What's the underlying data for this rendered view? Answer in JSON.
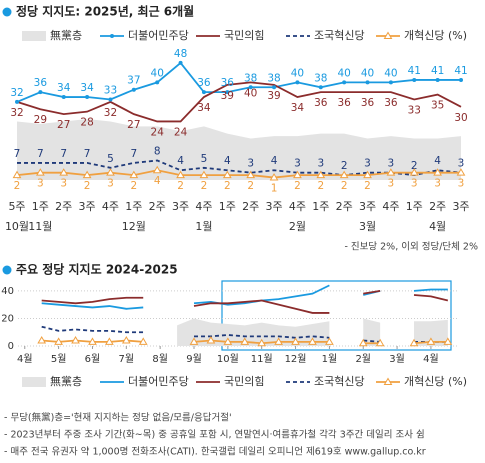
{
  "chart_data": [
    {
      "type": "line",
      "title": "정당 지지도: 2025년, 최근 6개월",
      "categories": [
        "5주",
        "1주",
        "2주",
        "3주",
        "4주",
        "1주",
        "2주",
        "3주",
        "4주",
        "1주",
        "2주",
        "3주",
        "4주",
        "1주",
        "2주",
        "3주",
        "4주",
        "1주",
        "2주",
        "3주"
      ],
      "months": [
        "10월",
        "11월",
        null,
        null,
        null,
        "12월",
        null,
        null,
        "1월",
        null,
        null,
        null,
        "2월",
        null,
        null,
        "3월",
        null,
        null,
        "4월",
        null
      ],
      "ylim": [
        0,
        50
      ],
      "value_labels_shown": true,
      "series": [
        {
          "name": "無黨층",
          "color": "#e3e3e3",
          "area": true,
          "labels": false,
          "values": [
            24,
            23,
            24,
            25,
            24,
            22,
            22,
            20,
            22,
            19,
            17,
            18,
            18,
            19,
            19,
            17,
            18,
            17,
            17,
            18
          ]
        },
        {
          "name": "더불어민주당",
          "color": "#1a9ae0",
          "marker": "circle",
          "labels": true,
          "values": [
            32,
            36,
            34,
            34,
            33,
            37,
            40,
            48,
            36,
            36,
            38,
            38,
            40,
            38,
            40,
            40,
            40,
            41,
            41,
            41
          ]
        },
        {
          "name": "국민의힘",
          "color": "#8b2c2c",
          "labels": true,
          "values": [
            32,
            29,
            27,
            28,
            32,
            27,
            24,
            24,
            34,
            39,
            40,
            39,
            34,
            36,
            36,
            36,
            36,
            33,
            35,
            30
          ]
        },
        {
          "name": "조국혁신당",
          "color": "#1f3a7a",
          "dash": true,
          "labels": true,
          "values": [
            7,
            7,
            7,
            7,
            5,
            7,
            8,
            4,
            5,
            4,
            3,
            4,
            3,
            3,
            2,
            3,
            3,
            2,
            4,
            3
          ]
        },
        {
          "name": "개혁신당 (%)",
          "color": "#f0a040",
          "marker": "triangle",
          "labels": true,
          "values": [
            2,
            3,
            3,
            2,
            3,
            2,
            4,
            2,
            2,
            2,
            2,
            1,
            2,
            2,
            2,
            2,
            3,
            3,
            3,
            3
          ]
        }
      ],
      "note": "- 진보당 2%, 이외 정당/단체 2%"
    },
    {
      "type": "line",
      "title": "주요 정당 지지도 2024-2025",
      "x": [
        0,
        0.5,
        1,
        1.5,
        2,
        2.5,
        3,
        3.5,
        4,
        4.5,
        5,
        5.5,
        6,
        6.5,
        7,
        7.5,
        8,
        8.5,
        9,
        9.5,
        10,
        10.5,
        11,
        11.5,
        12,
        12.5
      ],
      "xlim": [
        -0.2,
        12.8
      ],
      "xticks": [
        {
          "value": 0,
          "label": "4월"
        },
        {
          "value": 1,
          "label": "5월"
        },
        {
          "value": 2,
          "label": "6월"
        },
        {
          "value": 3,
          "label": "7월"
        },
        {
          "value": 4,
          "label": "8월"
        },
        {
          "value": 5,
          "label": "9월"
        },
        {
          "value": 6,
          "label": "10월"
        },
        {
          "value": 7,
          "label": "11월"
        },
        {
          "value": 8,
          "label": "12월"
        },
        {
          "value": 9,
          "label": "1월"
        },
        {
          "value": 10,
          "label": "2월"
        },
        {
          "value": 11,
          "label": "3월"
        },
        {
          "value": 12,
          "label": "4월"
        }
      ],
      "ylim": [
        0,
        45
      ],
      "yticks": [
        0,
        20,
        40
      ],
      "grid": true,
      "series": [
        {
          "name": "無黨층",
          "color": "#e3e3e3",
          "area": true,
          "values": [
            null,
            null,
            null,
            null,
            null,
            null,
            null,
            null,
            null,
            15,
            20,
            17,
            16,
            15,
            17,
            15,
            14,
            16,
            18,
            null,
            20,
            17,
            null,
            18,
            18,
            19
          ]
        },
        {
          "name": "더불어민주당",
          "color": "#1a9ae0",
          "values": [
            null,
            31,
            30,
            29,
            28,
            29,
            27,
            28,
            null,
            null,
            31,
            32,
            30,
            31,
            33,
            34,
            36,
            38,
            44,
            null,
            37,
            40,
            null,
            40,
            41,
            41
          ]
        },
        {
          "name": "국민의힘",
          "color": "#8b2c2c",
          "values": [
            null,
            33,
            32,
            31,
            32,
            34,
            35,
            35,
            null,
            null,
            29,
            31,
            31,
            32,
            33,
            30,
            27,
            24,
            24,
            null,
            38,
            40,
            null,
            37,
            36,
            33
          ]
        },
        {
          "name": "조국혁신당",
          "color": "#1f3a7a",
          "dash": true,
          "values": [
            null,
            14,
            11,
            12,
            11,
            11,
            10,
            10,
            null,
            null,
            7,
            7,
            8,
            7,
            7,
            7,
            6,
            7,
            6,
            null,
            4,
            3,
            null,
            3,
            3,
            3
          ]
        },
        {
          "name": "개혁신당 (%)",
          "color": "#f0a040",
          "marker": "triangle",
          "values": [
            null,
            4,
            3,
            4,
            3,
            3,
            4,
            3,
            null,
            null,
            3,
            4,
            3,
            3,
            2,
            3,
            3,
            3,
            3,
            null,
            2,
            2,
            null,
            2,
            3,
            3
          ]
        }
      ],
      "notes": [
        "- 무당(無黨)층='현재 지지하는 정당 없음/모름/응답거절'",
        "- 2023년부터 주중 조사 기간(화~목) 중 공휴일 포함 시, 연말연시·여름휴가철 각각 3주간 데일리 조사 쉼",
        "- 매주 전국 유권자 약 1,000명 전화조사(CATI). 한국갤럽 데일리 오피니언 제619호 www.gallup.co.kr"
      ]
    }
  ]
}
